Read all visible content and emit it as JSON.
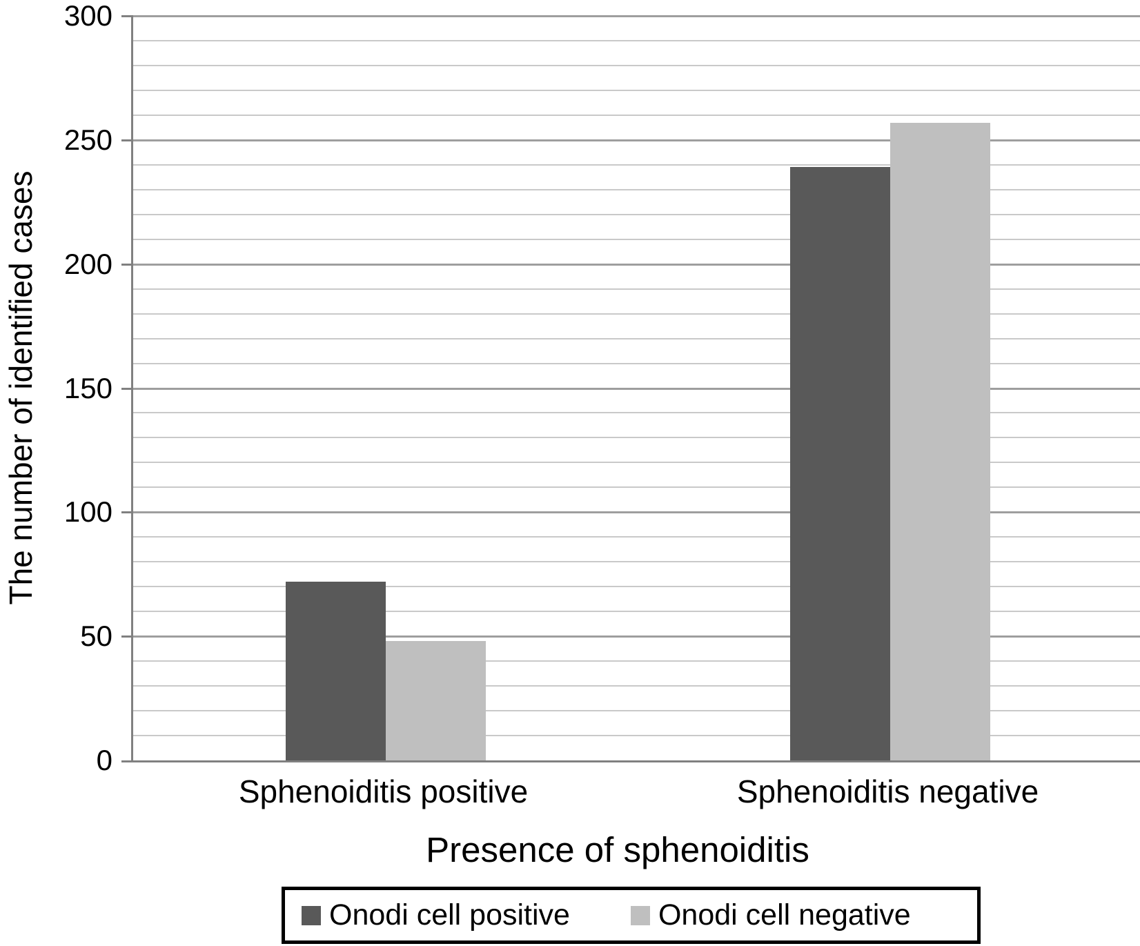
{
  "chart_data": {
    "type": "bar",
    "title": "",
    "categories": [
      "Sphenoiditis positive",
      "Sphenoiditis negative"
    ],
    "series": [
      {
        "name": "Onodi cell positive",
        "color": "#595959",
        "values": [
          72,
          239
        ]
      },
      {
        "name": "Onodi cell negative",
        "color": "#bfbfbf",
        "values": [
          48,
          257
        ]
      }
    ],
    "xlabel": "Presence of sphenoiditis",
    "ylabel": "The number of identified cases",
    "ylim": [
      0,
      300
    ],
    "ytick_step": 50,
    "ytick_labels": [
      "0",
      "50",
      "100",
      "150",
      "200",
      "250",
      "300"
    ],
    "minor_gridline_step": 10,
    "grid": true,
    "legend_position": "bottom-center",
    "axis_color": "#808080",
    "major_gridline_color": "#9e9e9e",
    "minor_gridline_color": "#c9c9c9"
  }
}
